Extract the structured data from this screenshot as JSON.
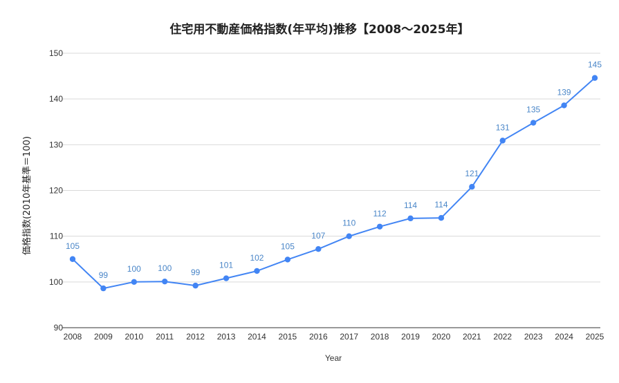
{
  "colors": {
    "series": "#4285f4",
    "label": "#4a86c8",
    "grid": "#d9d9d9",
    "axis": "#333333"
  },
  "chart_data": {
    "type": "line",
    "title": "住宅用不動産価格指数(年平均)推移【2008～2025年】",
    "xlabel": "Year",
    "ylabel": "価格指数(2010年基準＝100)",
    "ylim": [
      90,
      150
    ],
    "yticks": [
      "90",
      "100",
      "110",
      "120",
      "130",
      "140",
      "150"
    ],
    "grid": true,
    "legend": "none",
    "categories": [
      "2008",
      "2009",
      "2010",
      "2011",
      "2012",
      "2013",
      "2014",
      "2015",
      "2016",
      "2017",
      "2018",
      "2019",
      "2020",
      "2021",
      "2022",
      "2023",
      "2024",
      "2025"
    ],
    "series": [
      {
        "values": [
          105.0,
          98.6,
          100.0,
          100.1,
          99.2,
          100.8,
          102.4,
          104.9,
          107.2,
          110.0,
          112.1,
          113.9,
          114.0,
          120.8,
          130.9,
          134.8,
          138.6,
          144.6
        ],
        "data_labels": [
          "105",
          "99",
          "100",
          "100",
          "99",
          "101",
          "102",
          "105",
          "107",
          "110",
          "112",
          "114",
          "114",
          "121",
          "131",
          "135",
          "139",
          "145"
        ]
      }
    ]
  }
}
